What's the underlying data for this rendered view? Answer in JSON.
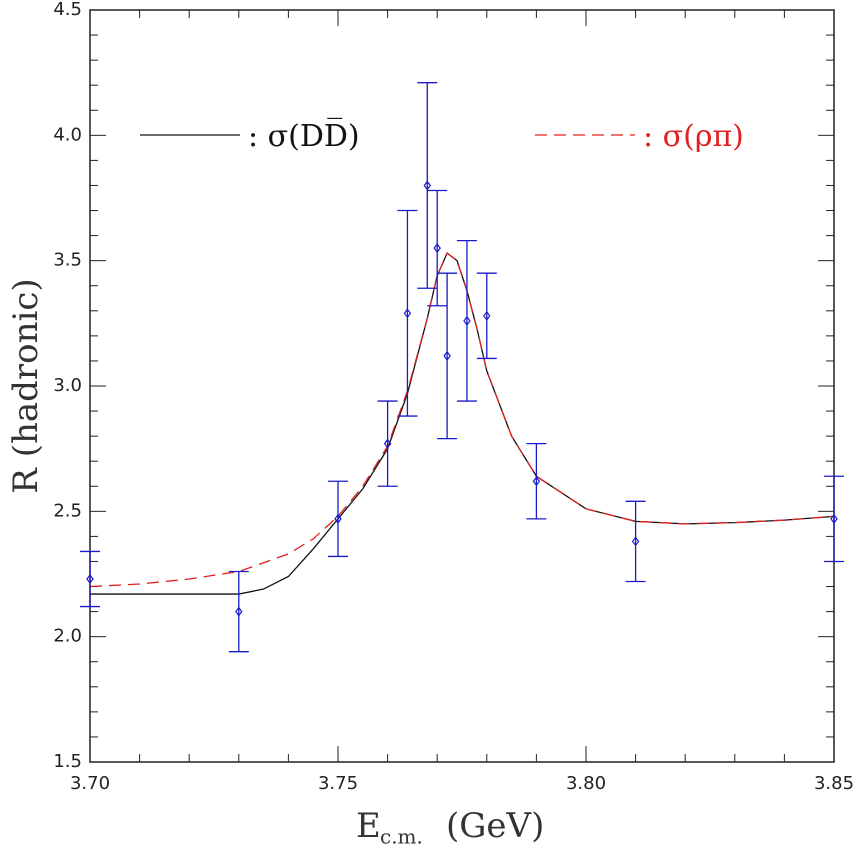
{
  "chart_data": {
    "type": "errorbar",
    "xlabel": "E",
    "xlabel_sub": "c.m.",
    "xlabel_unit": "(GeV)",
    "ylabel": "R (hadronic)",
    "xlim": [
      3.7,
      3.85
    ],
    "ylim": [
      1.5,
      4.5
    ],
    "xticks": [
      {
        "value": 3.7,
        "label": "3.70"
      },
      3.75,
      {
        "value": 3.8,
        "label": "3.80"
      },
      3.85
    ],
    "yticks": [
      1.5,
      {
        "value": 2,
        "label": "2.0"
      },
      2.5,
      {
        "value": 3,
        "label": "3.0"
      },
      3.5,
      {
        "value": 4,
        "label": "4.0"
      },
      4.5
    ],
    "xminorticks": [
      3.71,
      3.72,
      3.73,
      3.74,
      3.76,
      3.77,
      3.78,
      3.79,
      3.81,
      3.82,
      3.83,
      3.84
    ],
    "yminorticks": [
      1.6,
      1.7,
      1.8,
      1.9,
      2.1,
      2.2,
      2.3,
      2.4,
      2.6,
      2.7,
      2.8,
      2.9,
      3.1,
      3.2,
      3.3,
      3.4,
      3.6,
      3.7,
      3.8,
      3.9,
      4.1,
      4.2,
      4.3,
      4.4
    ],
    "points": {
      "color": "#1a1acc",
      "x": [
        3.7,
        3.73,
        3.75,
        3.76,
        3.764,
        3.768,
        3.77,
        3.772,
        3.776,
        3.78,
        3.79,
        3.81,
        3.85
      ],
      "values": [
        2.23,
        2.1,
        2.47,
        2.77,
        3.29,
        3.8,
        3.55,
        3.12,
        3.26,
        3.28,
        2.62,
        2.38,
        2.47
      ],
      "errors": [
        0.11,
        0.16,
        0.15,
        0.17,
        0.41,
        0.41,
        0.23,
        0.33,
        0.32,
        0.17,
        0.15,
        0.16,
        0.17
      ]
    },
    "series": [
      {
        "name": ": σ(DD̅)",
        "color": "#111111",
        "dash": false,
        "x": [
          3.7,
          3.73,
          3.735,
          3.74,
          3.745,
          3.75,
          3.755,
          3.76,
          3.764,
          3.768,
          3.77,
          3.772,
          3.774,
          3.776,
          3.778,
          3.78,
          3.785,
          3.79,
          3.8,
          3.81,
          3.82,
          3.83,
          3.84,
          3.85
        ],
        "values": [
          2.17,
          2.17,
          2.19,
          2.24,
          2.35,
          2.47,
          2.59,
          2.75,
          2.97,
          3.27,
          3.44,
          3.53,
          3.5,
          3.38,
          3.23,
          3.06,
          2.8,
          2.64,
          2.51,
          2.46,
          2.45,
          2.455,
          2.465,
          2.48
        ]
      },
      {
        "name": ": σ(ρπ)",
        "color": "#e02020",
        "dash": true,
        "x": [
          3.7,
          3.71,
          3.72,
          3.73,
          3.74,
          3.745,
          3.75,
          3.755,
          3.76,
          3.764,
          3.768,
          3.77,
          3.772,
          3.774,
          3.776,
          3.778,
          3.78,
          3.785,
          3.79,
          3.8,
          3.81,
          3.82,
          3.83,
          3.84,
          3.85
        ],
        "values": [
          2.2,
          2.21,
          2.23,
          2.26,
          2.33,
          2.39,
          2.48,
          2.6,
          2.76,
          2.98,
          3.27,
          3.44,
          3.53,
          3.5,
          3.38,
          3.23,
          3.06,
          2.8,
          2.64,
          2.51,
          2.46,
          2.45,
          2.455,
          2.465,
          2.48
        ]
      }
    ]
  }
}
